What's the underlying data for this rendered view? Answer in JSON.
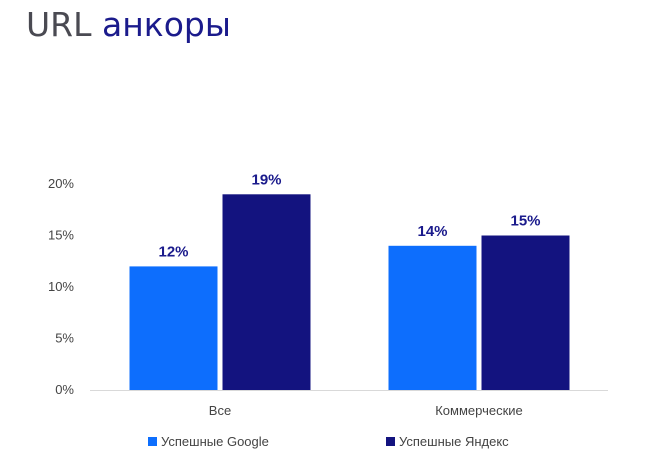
{
  "title": {
    "part1": "URL",
    "part2": "анкоры"
  },
  "colors": {
    "series1": "#0d6efd",
    "series2": "#13137f",
    "title_accent": "#1b1b8c",
    "axis": "#d9d9d9"
  },
  "chart_data": {
    "type": "bar",
    "categories": [
      "Все",
      "Коммерческие"
    ],
    "series": [
      {
        "name": "Успешные Google",
        "values": [
          12,
          14
        ],
        "labels": [
          "12%",
          "14%"
        ]
      },
      {
        "name": "Успешные Яндекс",
        "values": [
          19,
          15
        ],
        "labels": [
          "19%",
          "15%"
        ]
      }
    ],
    "yticks": [
      "0%",
      "5%",
      "10%",
      "15%",
      "20%"
    ],
    "ylim": [
      0,
      20
    ],
    "grid": false,
    "legend_position": "bottom"
  }
}
